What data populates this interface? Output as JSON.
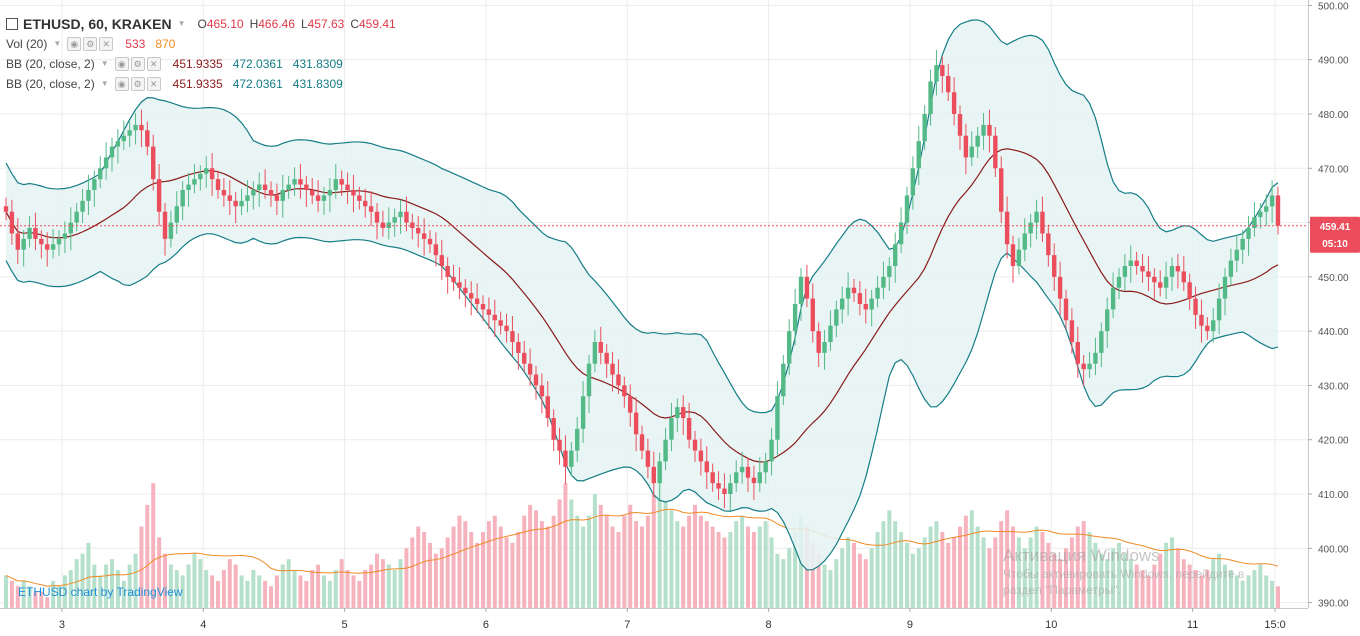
{
  "symbol": {
    "title": "ETHUSD, 60, KRAKEN"
  },
  "ohlc": [
    {
      "label": "O",
      "value": "465.10"
    },
    {
      "label": "H",
      "value": "466.46"
    },
    {
      "label": "L",
      "value": "457.63"
    },
    {
      "label": "C",
      "value": "459.41"
    }
  ],
  "indicators": [
    {
      "name": "Vol (20)",
      "values": [
        {
          "text": "533",
          "color": "#e0394a"
        },
        {
          "text": "870",
          "color": "#f08a24"
        }
      ]
    },
    {
      "name": "BB (20, close, 2)",
      "values": [
        {
          "text": "451.9335",
          "color": "#8b1a1a"
        },
        {
          "text": "472.0361",
          "color": "#157d86"
        },
        {
          "text": "431.8309",
          "color": "#157d86"
        }
      ]
    },
    {
      "name": "BB (20, close, 2)",
      "values": [
        {
          "text": "451.9335",
          "color": "#8b1a1a"
        },
        {
          "text": "472.0361",
          "color": "#157d86"
        },
        {
          "text": "431.8309",
          "color": "#157d86"
        }
      ]
    }
  ],
  "price_tag": {
    "price": "459.41",
    "countdown": "05:10"
  },
  "attribution": "ETHUSD chart by TradingView",
  "watermark": {
    "title": "Активация Windows",
    "line1": "Чтобы активировать Windows, перейдите в",
    "line2": "раздел \"Параметры\"."
  },
  "colors": {
    "up": "#53b987",
    "down": "#eb4d5c",
    "vol_up": "#b5e0cb",
    "vol_down": "#f6b3be",
    "band": "#157d86",
    "basis": "#8b1a1a",
    "fill": "#e5f3f3",
    "vol_ma": "#f08a24"
  },
  "chart_data": {
    "type": "candlestick",
    "title": "ETHUSD, 60, KRAKEN",
    "ylim": [
      389,
      501
    ],
    "y_ticks": [
      390,
      400,
      410,
      420,
      430,
      440,
      450,
      460,
      470,
      480,
      490,
      500
    ],
    "x_ticks": [
      {
        "label": "3",
        "at": 9.5
      },
      {
        "label": "4",
        "at": 33.5
      },
      {
        "label": "5",
        "at": 57.5
      },
      {
        "label": "6",
        "at": 81.5
      },
      {
        "label": "7",
        "at": 105.5
      },
      {
        "label": "8",
        "at": 129.5
      },
      {
        "label": "9",
        "at": 153.5
      },
      {
        "label": "10",
        "at": 177.5
      },
      {
        "label": "11",
        "at": 201.5
      },
      {
        "label": "15:0",
        "at": 215.5
      }
    ],
    "last_price": 459.41,
    "closes": [
      462,
      458,
      455,
      457,
      459,
      457,
      456,
      455,
      456,
      457,
      458,
      460,
      462,
      464,
      466,
      468,
      470,
      472,
      474,
      475,
      476,
      477,
      478,
      477,
      474,
      468,
      462,
      457,
      460,
      463,
      466,
      467,
      468,
      469,
      470,
      468,
      466,
      465,
      464,
      463,
      464,
      465,
      466,
      467,
      466,
      465,
      464,
      466,
      467,
      468,
      467,
      466,
      465,
      464,
      465,
      466,
      468,
      467,
      466,
      465,
      464,
      463,
      462,
      460,
      459,
      460,
      461,
      462,
      460,
      459,
      458,
      457,
      456,
      454,
      452,
      450,
      449,
      448,
      447,
      446,
      445,
      444,
      443,
      442,
      441,
      440,
      438,
      436,
      434,
      432,
      430,
      428,
      424,
      420,
      418,
      415,
      418,
      422,
      428,
      434,
      438,
      436,
      434,
      432,
      430,
      428,
      425,
      421,
      418,
      415,
      412,
      416,
      420,
      424,
      426,
      424,
      420,
      418,
      416,
      414,
      412,
      411,
      410,
      412,
      414,
      415,
      413,
      412,
      414,
      416,
      420,
      428,
      434,
      440,
      445,
      450,
      446,
      440,
      436,
      438,
      441,
      444,
      446,
      448,
      447,
      445,
      444,
      446,
      448,
      450,
      452,
      456,
      460,
      465,
      470,
      475,
      480,
      486,
      489,
      487,
      484,
      480,
      476,
      472,
      474,
      476,
      478,
      476,
      470,
      462,
      456,
      452,
      455,
      458,
      460,
      462,
      458,
      454,
      450,
      446,
      442,
      438,
      434,
      433,
      434,
      436,
      440,
      444,
      448,
      450,
      452,
      453,
      452,
      451,
      450,
      449,
      448,
      450,
      452,
      451,
      449,
      446,
      443,
      441,
      440,
      442,
      446,
      450,
      453,
      455,
      457,
      459,
      461,
      462,
      463,
      465,
      459.41
    ],
    "volumes": [
      395,
      394,
      393,
      394,
      393,
      392,
      392,
      391,
      394,
      393,
      395,
      396,
      398,
      399,
      401,
      397,
      395,
      397,
      398,
      396,
      394,
      397,
      399,
      404,
      408,
      412,
      402,
      399,
      397,
      396,
      395,
      397,
      399,
      398,
      396,
      395,
      394,
      396,
      398,
      397,
      395,
      394,
      396,
      395,
      394,
      393,
      395,
      397,
      398,
      396,
      395,
      394,
      396,
      397,
      395,
      394,
      396,
      398,
      396,
      395,
      394,
      396,
      397,
      399,
      398,
      397,
      396,
      398,
      400,
      402,
      404,
      403,
      401,
      399,
      400,
      402,
      404,
      406,
      405,
      403,
      401,
      403,
      405,
      406,
      404,
      402,
      401,
      403,
      406,
      408,
      407,
      405,
      404,
      406,
      409,
      412,
      409,
      406,
      404,
      406,
      410,
      408,
      406,
      404,
      403,
      406,
      408,
      405,
      404,
      406,
      410,
      412,
      409,
      407,
      405,
      404,
      406,
      408,
      406,
      405,
      404,
      403,
      402,
      403,
      405,
      406,
      404,
      403,
      404,
      405,
      402,
      399,
      398,
      400,
      403,
      406,
      404,
      401,
      399,
      397,
      396,
      398,
      400,
      402,
      401,
      399,
      398,
      400,
      403,
      405,
      407,
      405,
      403,
      401,
      399,
      400,
      402,
      404,
      405,
      403,
      401,
      402,
      404,
      406,
      407,
      404,
      402,
      400,
      402,
      405,
      407,
      404,
      402,
      400,
      402,
      404,
      403,
      401,
      399,
      398,
      400,
      402,
      404,
      405,
      403,
      401,
      399,
      398,
      400,
      401,
      399,
      398,
      397,
      396,
      395,
      397,
      399,
      401,
      402,
      400,
      398,
      397,
      396,
      395,
      396,
      398,
      399,
      397,
      396,
      395,
      394,
      395,
      396,
      397,
      395,
      394,
      393
    ]
  }
}
